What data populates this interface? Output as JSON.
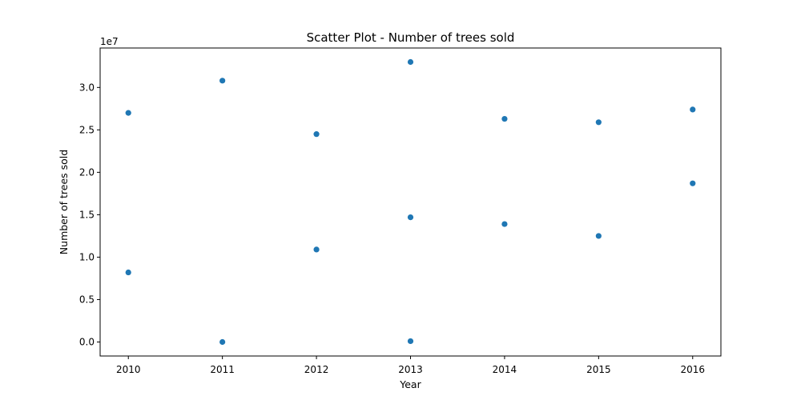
{
  "chart_data": {
    "type": "scatter",
    "title": "Scatter Plot - Number of trees sold",
    "xlabel": "Year",
    "ylabel": "Number of trees sold",
    "y_offset_label": "1e7",
    "xlim": [
      2009.7,
      2016.3
    ],
    "ylim": [
      -1650000,
      34650000
    ],
    "x_ticks": [
      2010,
      2011,
      2012,
      2013,
      2014,
      2015,
      2016
    ],
    "x_tick_labels": [
      "2010",
      "2011",
      "2012",
      "2013",
      "2014",
      "2015",
      "2016"
    ],
    "y_ticks": [
      0,
      5000000,
      10000000,
      15000000,
      20000000,
      25000000,
      30000000
    ],
    "y_tick_labels": [
      "0.0",
      "0.5",
      "1.0",
      "1.5",
      "2.0",
      "2.5",
      "3.0"
    ],
    "grid": false,
    "marker_color": "#1f77b4",
    "points": [
      {
        "x": 2010,
        "y": 27000000
      },
      {
        "x": 2010,
        "y": 8200000
      },
      {
        "x": 2011,
        "y": 30800000
      },
      {
        "x": 2011,
        "y": 0
      },
      {
        "x": 2012,
        "y": 24500000
      },
      {
        "x": 2012,
        "y": 10900000
      },
      {
        "x": 2013,
        "y": 33000000
      },
      {
        "x": 2013,
        "y": 14700000
      },
      {
        "x": 2013,
        "y": 100000
      },
      {
        "x": 2014,
        "y": 26300000
      },
      {
        "x": 2014,
        "y": 13900000
      },
      {
        "x": 2015,
        "y": 25900000
      },
      {
        "x": 2015,
        "y": 12500000
      },
      {
        "x": 2016,
        "y": 27400000
      },
      {
        "x": 2016,
        "y": 18700000
      }
    ]
  }
}
